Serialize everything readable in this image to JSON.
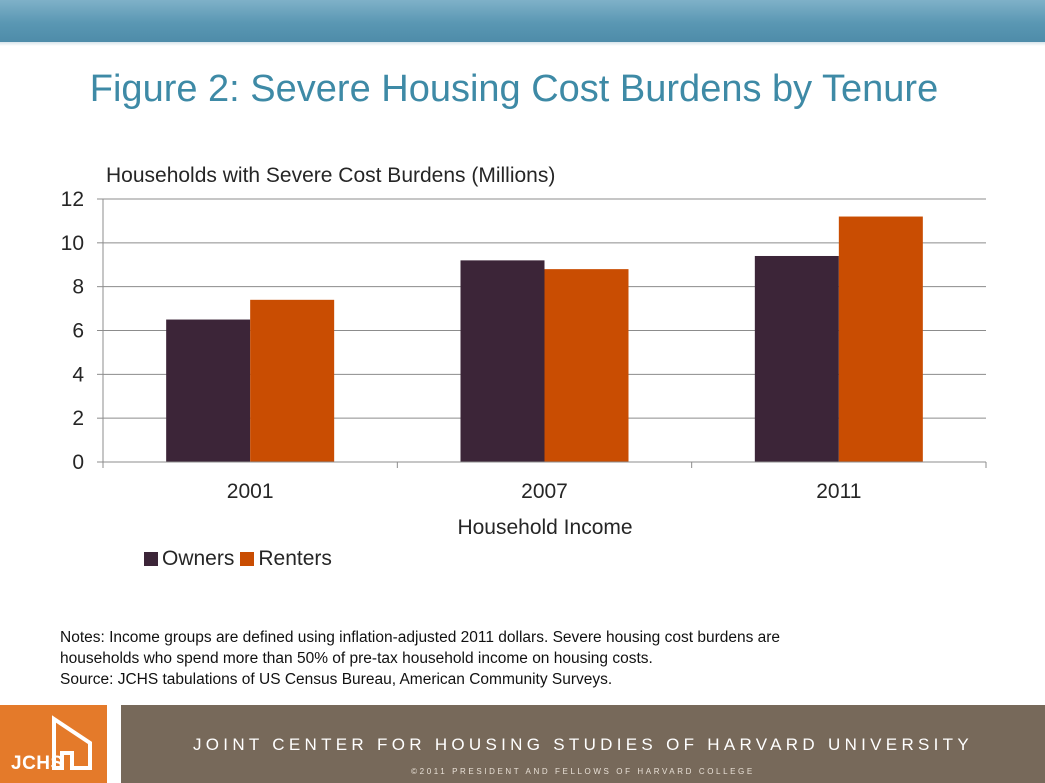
{
  "slide": {
    "title": "Figure 2: Severe Housing Cost Burdens by Tenure"
  },
  "chart_data": {
    "type": "bar",
    "title": "",
    "ylabel": "Households with Severe Cost Burdens (Millions)",
    "xlabel": "Household Income",
    "categories": [
      "2001",
      "2007",
      "2011"
    ],
    "series": [
      {
        "name": "Owners",
        "color": "#3c2538",
        "values": [
          6.5,
          9.2,
          9.4
        ]
      },
      {
        "name": "Renters",
        "color": "#c94d02",
        "values": [
          7.4,
          8.8,
          11.2
        ]
      }
    ],
    "ylim": [
      0,
      12
    ],
    "yticks": [
      "0",
      "2",
      "4",
      "6",
      "8",
      "10",
      "12"
    ],
    "grid": true,
    "legend_position": "bottom-left"
  },
  "notes": {
    "line1": "Notes: Income groups are defined using inflation-adjusted 2011 dollars.  Severe housing cost burdens are",
    "line2": "households who spend more than 50% of pre-tax household income on housing costs.",
    "line3": "Source: JCHS tabulations of US Census Bureau, American Community Surveys."
  },
  "footer": {
    "logo_text": "JCHS",
    "organization": "JOINT CENTER FOR HOUSING STUDIES OF HARVARD UNIVERSITY",
    "copyright": "©2011 PRESIDENT AND FELLOWS OF HARVARD COLLEGE"
  },
  "colors": {
    "title": "#3e8aa6",
    "top_band": "#5a97b3",
    "footer_band": "#77695a",
    "logo_box": "#e47a2a"
  }
}
